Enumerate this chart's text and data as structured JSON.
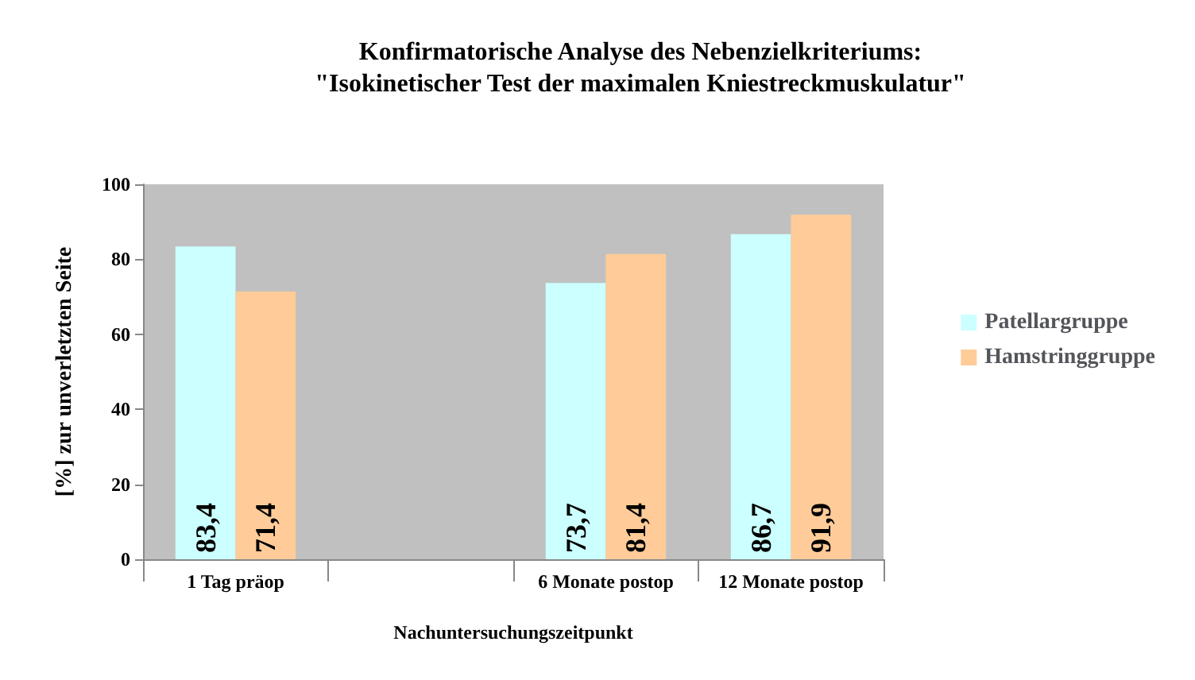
{
  "chart_data": {
    "type": "bar",
    "title": "Konfirmatorische Analyse des Nebenzielkriteriums:\n\"Isokinetischer Test der maximalen Kniestreckmuskulatur\"",
    "categories": [
      "1 Tag präop",
      null,
      "6 Monate postop",
      "12 Monate postop"
    ],
    "xlabel": "Nachuntersuchungszeitpunkt",
    "ylabel": "[%] zur unverletzten Seite",
    "ylim": [
      0,
      100
    ],
    "yticks": [
      0,
      20,
      40,
      60,
      80,
      100
    ],
    "legend": "right",
    "series": [
      {
        "name": "Patellargruppe",
        "color": "#ccffff",
        "values": [
          83.4,
          null,
          73.7,
          86.7
        ],
        "value_labels": [
          "83,4",
          null,
          "73,7",
          "86,7"
        ]
      },
      {
        "name": "Hamstringgruppe",
        "color": "#ffcc99",
        "values": [
          71.4,
          null,
          81.4,
          91.9
        ],
        "value_labels": [
          "71,4",
          null,
          "81,4",
          "91,9"
        ]
      }
    ]
  }
}
